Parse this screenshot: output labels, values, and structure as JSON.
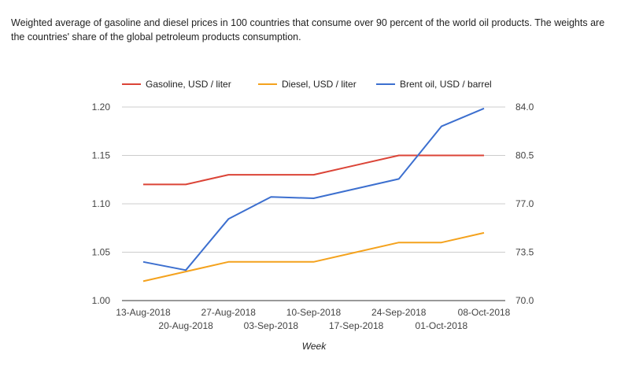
{
  "description": "Weighted average of gasoline and diesel prices in 100 countries that consume over 90 percent of the world oil products. The weights are the countries' share of the global petroleum products consumption.",
  "chart_data": {
    "type": "line",
    "xlabel": "Week",
    "categories": [
      "13-Aug-2018",
      "20-Aug-2018",
      "27-Aug-2018",
      "03-Sep-2018",
      "10-Sep-2018",
      "17-Sep-2018",
      "24-Sep-2018",
      "01-Oct-2018",
      "08-Oct-2018"
    ],
    "ylim_left": [
      1.0,
      1.2
    ],
    "yticks_left": [
      "1.00",
      "1.05",
      "1.10",
      "1.15",
      "1.20"
    ],
    "ylim_right": [
      70.0,
      84.0
    ],
    "yticks_right": [
      "70.0",
      "73.5",
      "77.0",
      "80.5",
      "84.0"
    ],
    "grid": true,
    "legend_position": "top",
    "series": [
      {
        "name": "Gasoline, USD / liter",
        "axis": "left",
        "color": "#db4437",
        "values": [
          1.12,
          1.12,
          1.13,
          1.13,
          1.13,
          1.14,
          1.15,
          1.15,
          1.15
        ]
      },
      {
        "name": "Diesel, USD / liter",
        "axis": "left",
        "color": "#f4a21d",
        "values": [
          1.02,
          1.03,
          1.04,
          1.04,
          1.04,
          1.05,
          1.06,
          1.06,
          1.07
        ]
      },
      {
        "name": "Brent oil, USD / barrel",
        "axis": "right",
        "color": "#3c6fcf",
        "values": [
          72.8,
          72.2,
          75.9,
          77.5,
          77.4,
          null,
          78.8,
          82.6,
          83.9
        ]
      }
    ]
  }
}
